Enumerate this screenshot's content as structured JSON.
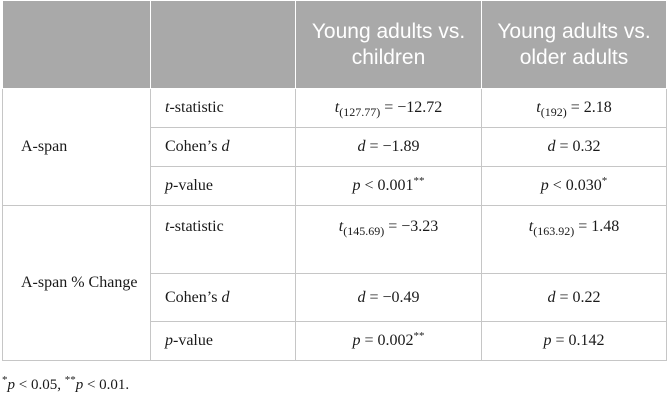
{
  "header": {
    "col_young_children": "Young adults vs. children",
    "col_young_older": "Young adults vs. older adults"
  },
  "groups": [
    {
      "label": "A-span",
      "rows": [
        {
          "stat": "t-statistic",
          "yc_df": "(127.77)",
          "yc_val": " = −12.72",
          "yo_df": "(192)",
          "yo_val": " = 2.18"
        },
        {
          "stat": "Cohen’s d",
          "yc_val": " = −1.89",
          "yo_val": " = 0.32"
        },
        {
          "stat": "p-value",
          "yc_val": " < 0.001",
          "yc_sig": "**",
          "yo_val": " < 0.030",
          "yo_sig": "*"
        }
      ]
    },
    {
      "label": "A-span % Change",
      "rows": [
        {
          "stat": "t-statistic",
          "yc_df": "(145.69)",
          "yc_val": " = −3.23",
          "yo_df": "(163.92)",
          "yo_val": " = 1.48"
        },
        {
          "stat": "Cohen’s d",
          "yc_val": " = −0.49",
          "yo_val": " = 0.22"
        },
        {
          "stat": "p-value",
          "yc_val": " = 0.002",
          "yc_sig": "**",
          "yo_val": " = 0.142"
        }
      ]
    }
  ],
  "footnote": {
    "sig1": "*",
    "sym1": "p",
    "txt1": " < 0.05, ",
    "sig2": "**",
    "sym2": "p",
    "txt2": " < 0.01."
  }
}
